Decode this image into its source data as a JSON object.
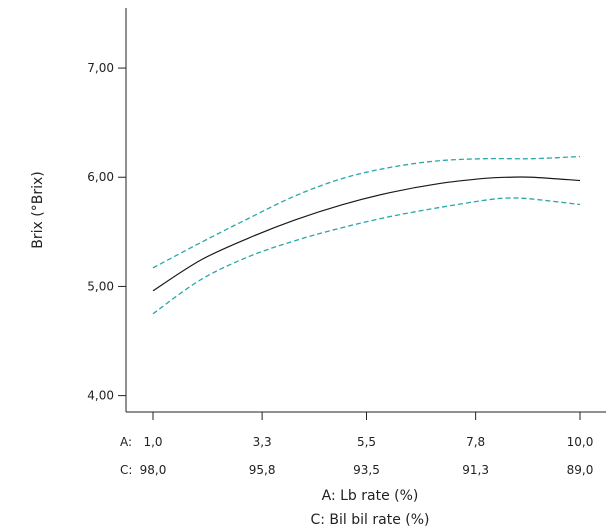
{
  "chart_data": {
    "type": "line",
    "ylabel": "Brix (°Brix)",
    "xlabels": [
      "A: Lb rate (%)",
      "C: Bil bil rate (%)"
    ],
    "axis_prefixes": [
      "A:",
      "C:"
    ],
    "x_ticks_A": [
      "1,0",
      "3,3",
      "5,5",
      "7,8",
      "10,0"
    ],
    "x_ticks_C": [
      "98,0",
      "95,8",
      "93,5",
      "91,3",
      "89,0"
    ],
    "y_ticks": [
      "4,00",
      "5,00",
      "6,00",
      "7,00"
    ],
    "xlim": [
      1.0,
      10.0
    ],
    "ylim": [
      3.85,
      7.55
    ],
    "grid": false,
    "colors": {
      "prediction": "#1a1a1a",
      "interval": "#2aa7a9",
      "axis": "#222222"
    },
    "series": [
      {
        "key": "prediction",
        "style": "solid",
        "x": [
          1.0,
          2.0,
          3.0,
          4.0,
          5.0,
          6.0,
          7.0,
          8.0,
          8.5,
          9.0,
          10.0
        ],
        "y": [
          4.96,
          5.24,
          5.44,
          5.61,
          5.75,
          5.86,
          5.94,
          5.99,
          6.0,
          6.0,
          5.97
        ]
      },
      {
        "key": "upper_interval",
        "style": "dashed",
        "x": [
          1.0,
          2.0,
          3.0,
          4.0,
          5.0,
          6.0,
          7.0,
          8.0,
          9.0,
          10.0
        ],
        "y": [
          5.17,
          5.4,
          5.62,
          5.83,
          5.99,
          6.09,
          6.15,
          6.17,
          6.17,
          6.19
        ]
      },
      {
        "key": "lower_interval",
        "style": "dashed",
        "x": [
          1.0,
          2.0,
          3.0,
          4.0,
          5.0,
          6.0,
          7.0,
          8.0,
          8.5,
          9.0,
          10.0
        ],
        "y": [
          4.75,
          5.06,
          5.27,
          5.42,
          5.54,
          5.64,
          5.72,
          5.79,
          5.81,
          5.8,
          5.75
        ]
      }
    ]
  }
}
